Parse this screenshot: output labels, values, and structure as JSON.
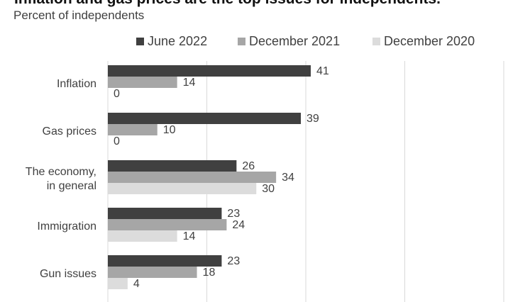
{
  "header": {
    "title": "Inflation and gas prices are the top issues for independents.",
    "subtitle": "Percent of independents"
  },
  "colors": {
    "series": [
      "#404040",
      "#a6a6a6",
      "#dcdcdc"
    ],
    "grid": "#d9d9d9",
    "text": "#404040"
  },
  "chart_data": {
    "type": "bar",
    "orientation": "horizontal",
    "categories": [
      "Inflation",
      "Gas prices",
      "The economy,\nin general",
      "Immigration",
      "Gun issues"
    ],
    "series": [
      {
        "name": "June 2022",
        "values": [
          41,
          39,
          26,
          23,
          23
        ]
      },
      {
        "name": "December 2021",
        "values": [
          14,
          10,
          34,
          24,
          18
        ]
      },
      {
        "name": "December 2020",
        "values": [
          0,
          0,
          30,
          14,
          4
        ]
      }
    ],
    "title": "Inflation and gas prices are the top issues for independents.",
    "subtitle": "Percent of independents",
    "xlim": [
      0,
      100
    ],
    "grid": true,
    "legend": "top"
  }
}
